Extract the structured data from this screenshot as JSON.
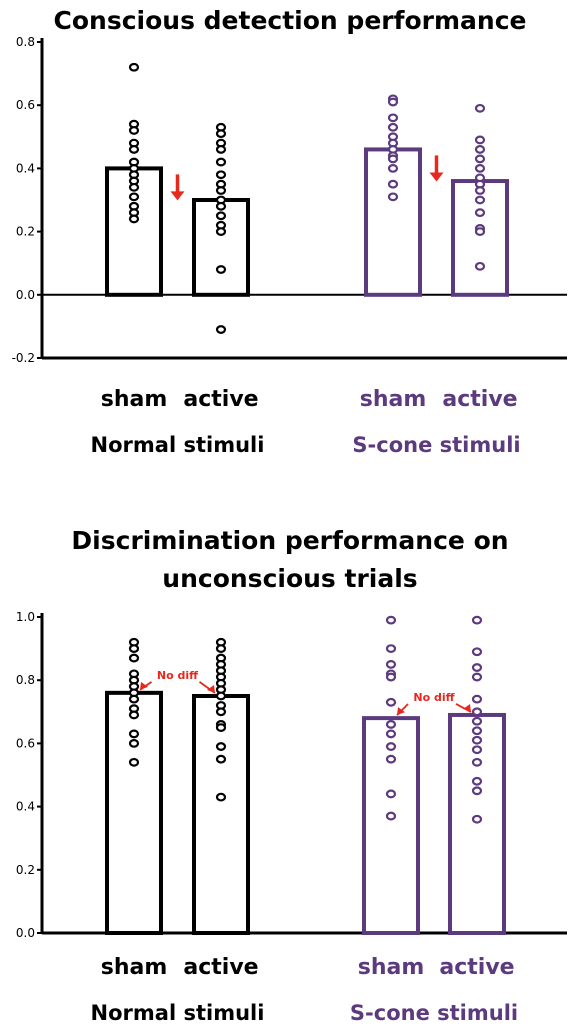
{
  "colors": {
    "normal": "#000000",
    "scone": "#5b3a7e",
    "arrow": "#e8281e"
  },
  "chart_data": [
    {
      "type": "bar",
      "title": "Conscious detection performance",
      "ylim": [
        -0.2,
        0.8
      ],
      "yticks": [
        "-0.2",
        "0.0",
        "0.2",
        "0.4",
        "0.6",
        "0.8"
      ],
      "groups": [
        {
          "label": "Normal stimuli",
          "conditions": [
            {
              "label": "sham",
              "mean": 0.4,
              "points": [
                0.72,
                0.54,
                0.52,
                0.48,
                0.46,
                0.42,
                0.4,
                0.38,
                0.36,
                0.34,
                0.31,
                0.28,
                0.26,
                0.24
              ]
            },
            {
              "label": "active",
              "mean": 0.3,
              "points": [
                0.53,
                0.51,
                0.48,
                0.46,
                0.42,
                0.38,
                0.35,
                0.33,
                0.3,
                0.28,
                0.25,
                0.22,
                0.2,
                0.08,
                -0.11
              ]
            }
          ],
          "annotation": {
            "type": "decrease-arrow"
          }
        },
        {
          "label": "S-cone stimuli",
          "conditions": [
            {
              "label": "sham",
              "mean": 0.46,
              "points": [
                0.62,
                0.61,
                0.56,
                0.53,
                0.5,
                0.48,
                0.46,
                0.44,
                0.43,
                0.4,
                0.35,
                0.31
              ]
            },
            {
              "label": "active",
              "mean": 0.36,
              "points": [
                0.59,
                0.49,
                0.46,
                0.43,
                0.4,
                0.37,
                0.35,
                0.33,
                0.3,
                0.26,
                0.21,
                0.2,
                0.09
              ]
            }
          ],
          "annotation": {
            "type": "decrease-arrow"
          }
        }
      ]
    },
    {
      "type": "bar",
      "title": "Discrimination performance on unconscious trials",
      "ylim": [
        0.0,
        1.0
      ],
      "yticks": [
        "0.0",
        "0.2",
        "0.4",
        "0.6",
        "0.8",
        "1.0"
      ],
      "groups": [
        {
          "label": "Normal stimuli",
          "conditions": [
            {
              "label": "sham",
              "mean": 0.76,
              "points": [
                0.92,
                0.9,
                0.87,
                0.82,
                0.8,
                0.78,
                0.76,
                0.74,
                0.71,
                0.69,
                0.63,
                0.6,
                0.54
              ]
            },
            {
              "label": "active",
              "mean": 0.75,
              "points": [
                0.92,
                0.9,
                0.87,
                0.85,
                0.83,
                0.81,
                0.79,
                0.77,
                0.75,
                0.72,
                0.7,
                0.66,
                0.65,
                0.59,
                0.55,
                0.43
              ]
            }
          ],
          "annotation": {
            "type": "no-diff",
            "text": "No diff"
          }
        },
        {
          "label": "S-cone stimuli",
          "conditions": [
            {
              "label": "sham",
              "mean": 0.68,
              "points": [
                0.99,
                0.9,
                0.85,
                0.82,
                0.81,
                0.73,
                0.66,
                0.63,
                0.59,
                0.55,
                0.44,
                0.37
              ]
            },
            {
              "label": "active",
              "mean": 0.69,
              "points": [
                0.99,
                0.89,
                0.84,
                0.81,
                0.74,
                0.7,
                0.67,
                0.64,
                0.61,
                0.58,
                0.54,
                0.48,
                0.45,
                0.36
              ]
            }
          ],
          "annotation": {
            "type": "no-diff",
            "text": "No diff"
          }
        }
      ]
    }
  ]
}
